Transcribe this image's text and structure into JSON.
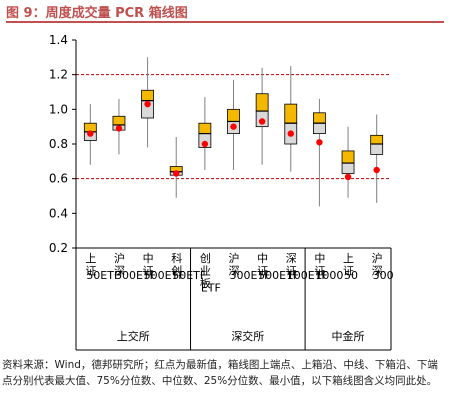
{
  "title": "图 9：周度成交量 PCR 箱线图",
  "footnote": "资料来源：Wind，德邦研究所；红点为最新值，箱线图上端点、上箱沿、中线、下箱沿、下端点分别代表最大值、75%分位数、中位数、25%分位数、最小值，以下箱线图含义均同此处。",
  "chart_data": {
    "type": "boxplot",
    "ylim": [
      0.2,
      1.4
    ],
    "yticks": [
      "0.2",
      "0.4",
      "0.6",
      "0.8",
      "1.0",
      "1.2",
      "1.4"
    ],
    "reference_lines": [
      1.2,
      0.6
    ],
    "colors": {
      "upper_box": "#f5b800",
      "lower_box": "#d9d9d9",
      "latest": "#ff0000",
      "whisker": "#808080",
      "reference": "#c00000"
    },
    "groups": [
      {
        "name": "上交所",
        "size": 4
      },
      {
        "name": "深交所",
        "size": 4
      },
      {
        "name": "中金所",
        "size": 3
      }
    ],
    "categories": [
      "上证50ETF",
      "沪深300ETF",
      "中证500ETF",
      "科创50ETF",
      "创业板ETF",
      "沪深300ETF",
      "中证500ETF",
      "深证100ETF",
      "中证1000",
      "上证50",
      "沪深300"
    ],
    "series": [
      {
        "min": 0.68,
        "q1": 0.82,
        "median": 0.87,
        "q3": 0.92,
        "max": 1.03,
        "latest": 0.86
      },
      {
        "min": 0.74,
        "q1": 0.88,
        "median": 0.91,
        "q3": 0.96,
        "max": 1.06,
        "latest": 0.89
      },
      {
        "min": 0.78,
        "q1": 0.95,
        "median": 1.05,
        "q3": 1.11,
        "max": 1.3,
        "latest": 1.03
      },
      {
        "min": 0.49,
        "q1": 0.62,
        "median": 0.64,
        "q3": 0.67,
        "max": 0.84,
        "latest": 0.63
      },
      {
        "min": 0.65,
        "q1": 0.78,
        "median": 0.86,
        "q3": 0.92,
        "max": 1.07,
        "latest": 0.8
      },
      {
        "min": 0.65,
        "q1": 0.86,
        "median": 0.93,
        "q3": 1.0,
        "max": 1.17,
        "latest": 0.9
      },
      {
        "min": 0.68,
        "q1": 0.9,
        "median": 0.99,
        "q3": 1.09,
        "max": 1.24,
        "latest": 0.93
      },
      {
        "min": 0.64,
        "q1": 0.8,
        "median": 0.92,
        "q3": 1.03,
        "max": 1.25,
        "latest": 0.86
      },
      {
        "min": 0.44,
        "q1": 0.86,
        "median": 0.92,
        "q3": 0.98,
        "max": 1.06,
        "latest": 0.81
      },
      {
        "min": 0.49,
        "q1": 0.63,
        "median": 0.69,
        "q3": 0.76,
        "max": 0.9,
        "latest": 0.61
      },
      {
        "min": 0.46,
        "q1": 0.74,
        "median": 0.8,
        "q3": 0.85,
        "max": 0.97,
        "latest": 0.65
      }
    ]
  }
}
